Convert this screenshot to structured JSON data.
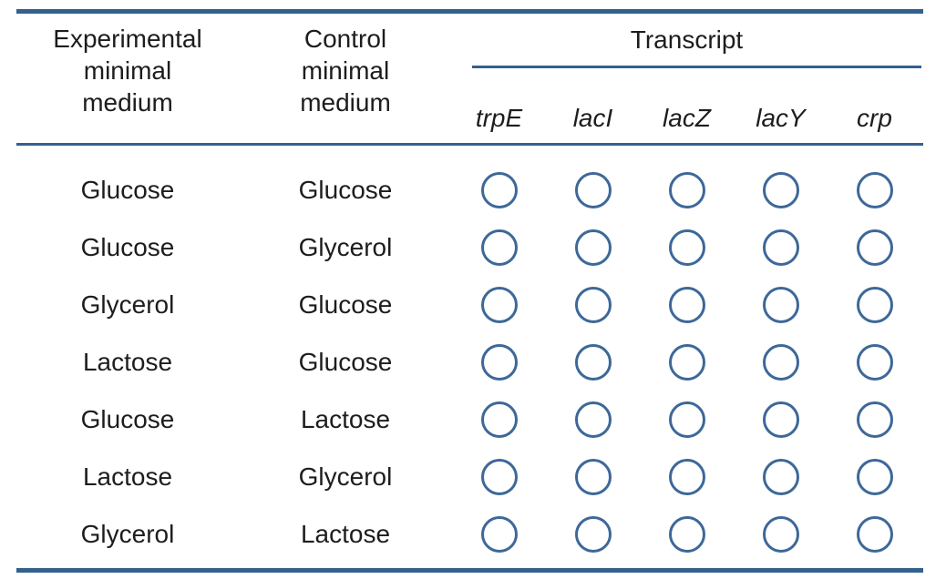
{
  "header": {
    "experimental_label": "Experimental\nminimal\nmedium",
    "control_label": "Control\nminimal\nmedium",
    "transcript_label": "Transcript",
    "genes": [
      "trpE",
      "lacI",
      "lacZ",
      "lacY",
      "crp"
    ]
  },
  "rows": [
    {
      "experimental": "Glucose",
      "control": "Glucose"
    },
    {
      "experimental": "Glucose",
      "control": "Glycerol"
    },
    {
      "experimental": "Glycerol",
      "control": "Glucose"
    },
    {
      "experimental": "Lactose",
      "control": "Glucose"
    },
    {
      "experimental": "Glucose",
      "control": "Lactose"
    },
    {
      "experimental": "Lactose",
      "control": "Glycerol"
    },
    {
      "experimental": "Glycerol",
      "control": "Lactose"
    }
  ],
  "colors": {
    "accent": "#3d6899",
    "rule": "#33608f",
    "text": "#1d1d1d"
  }
}
